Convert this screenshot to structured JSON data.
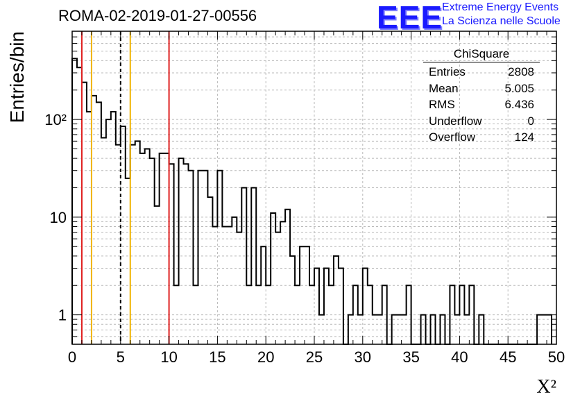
{
  "header": {
    "run_title": "ROMA-02-2019-01-27-00556",
    "logo_mark": "EEE",
    "logo_line1": "Extreme Energy Events",
    "logo_line2": "La Scienza nelle Scuole"
  },
  "stats_box": {
    "title": "ChiSquare",
    "rows": [
      {
        "label": "Entries",
        "value": "2808"
      },
      {
        "label": "Mean",
        "value": "5.005"
      },
      {
        "label": "RMS",
        "value": "6.436"
      },
      {
        "label": "Underflow",
        "value": "0"
      },
      {
        "label": "Overflow",
        "value": "124"
      }
    ]
  },
  "chart_data": {
    "type": "bar",
    "style": "step-histogram",
    "xlabel": "Χ²",
    "ylabel": "Entries/bin",
    "xlim": [
      0,
      50
    ],
    "ylim": [
      0.5,
      800
    ],
    "yscale": "log",
    "grid": true,
    "bin_width": 0.5,
    "x_ticks": [
      0,
      5,
      10,
      15,
      20,
      25,
      30,
      35,
      40,
      45,
      50
    ],
    "y_tick_labels": [
      {
        "value": 1,
        "label": "1"
      },
      {
        "value": 10,
        "label": "10"
      },
      {
        "value": 100,
        "label": "10²"
      }
    ],
    "values": [
      420,
      340,
      240,
      120,
      175,
      150,
      65,
      100,
      120,
      55,
      85,
      25,
      55,
      60,
      45,
      50,
      40,
      13,
      45,
      45,
      35,
      2,
      40,
      35,
      30,
      2,
      30,
      30,
      16,
      8,
      30,
      8,
      8,
      10,
      7,
      20,
      2,
      20,
      2,
      5,
      2,
      11,
      7,
      9,
      12,
      4,
      2,
      5,
      5,
      2,
      3,
      1,
      3,
      2,
      4,
      3,
      0,
      1,
      2,
      1,
      3,
      2,
      1,
      1,
      2,
      0,
      1,
      1,
      1,
      2,
      0,
      0,
      1,
      0,
      1,
      0,
      1,
      0,
      2,
      1,
      2,
      1,
      2,
      0,
      1,
      0,
      0,
      0,
      0,
      0,
      0,
      0,
      0,
      0,
      0,
      0,
      1,
      1,
      1
    ],
    "vertical_lines": [
      {
        "x": 1,
        "color": "#e02020",
        "style": "solid"
      },
      {
        "x": 2,
        "color": "#f0b400",
        "style": "solid"
      },
      {
        "x": 5,
        "color": "#000000",
        "style": "dashed"
      },
      {
        "x": 6,
        "color": "#f0b400",
        "style": "solid"
      },
      {
        "x": 10,
        "color": "#e02020",
        "style": "solid"
      }
    ]
  }
}
